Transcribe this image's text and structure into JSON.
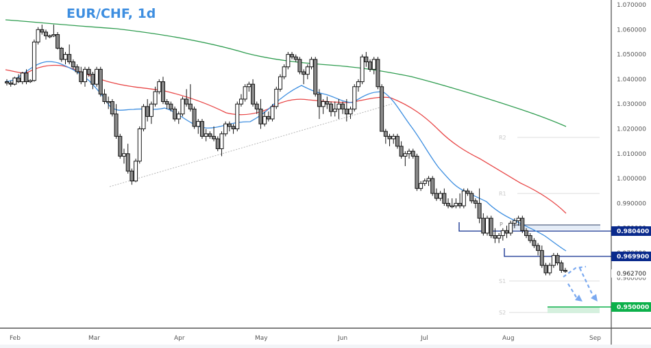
{
  "chart_data": {
    "type": "candlestick",
    "title": "EUR/CHF, 1d",
    "xlabel": "",
    "ylabel": "",
    "ylim": [
      0.945,
      1.07
    ],
    "grid": false,
    "x_ticks": [
      "Feb",
      "Mar",
      "Apr",
      "May",
      "Jun",
      "Jul",
      "Aug",
      "Sep"
    ],
    "y_ticks": [
      1.07,
      1.06,
      1.05,
      1.04,
      1.03,
      1.02,
      1.01,
      1.0,
      0.99,
      0.98,
      0.97,
      0.96
    ],
    "y_tick_labels": [
      "1.070000",
      "1.060000",
      "1.050000",
      "1.040000",
      "1.030000",
      "1.020000",
      "1.010000",
      "1.000000",
      "0.990000",
      "0.980000",
      "0.970000",
      "0.960000"
    ],
    "current_price": 0.9627,
    "current_price_label": "0.962700",
    "horizontal_levels": [
      {
        "name": "resistance-1",
        "value": 0.9804,
        "label": "0.980400",
        "color": "#0a2a8c"
      },
      {
        "name": "resistance-2",
        "value": 0.9699,
        "label": "0.969900",
        "color": "#0a2a8c"
      },
      {
        "name": "target",
        "value": 0.95,
        "label": "0.950000",
        "color": "#0cb04a"
      }
    ],
    "pivot_levels": [
      {
        "label": "R2",
        "value": 1.017
      },
      {
        "label": "R1",
        "value": 0.995
      },
      {
        "label": "P",
        "value": 0.9818
      },
      {
        "label": "S1",
        "value": 0.96
      },
      {
        "label": "S2",
        "value": 0.948
      }
    ],
    "moving_averages": [
      {
        "name": "MA fast (blue)",
        "color": "#3b8de0"
      },
      {
        "name": "MA medium (red)",
        "color": "#e84545"
      },
      {
        "name": "MA slow (green)",
        "color": "#2e9c4f"
      }
    ],
    "annotations": [
      {
        "type": "dotted-trendline",
        "from": [
          "Mar",
          0.9975
        ],
        "to": [
          "Jun",
          1.03
        ]
      },
      {
        "type": "projected-path-arrows",
        "description": "dashed blue arrows projecting decline toward 0.95"
      }
    ],
    "candles_approx": [
      [
        1.039,
        1.04,
        1.0375,
        1.0385
      ],
      [
        1.0385,
        1.0395,
        1.037,
        1.038
      ],
      [
        1.038,
        1.041,
        1.0375,
        1.0405
      ],
      [
        1.0405,
        1.042,
        1.0385,
        1.039
      ],
      [
        1.039,
        1.043,
        1.038,
        1.0425
      ],
      [
        1.0425,
        1.044,
        1.038,
        1.039
      ],
      [
        1.039,
        1.04,
        1.0385,
        1.0395
      ],
      [
        1.0395,
        1.056,
        1.039,
        1.055
      ],
      [
        1.055,
        1.061,
        1.054,
        1.06
      ],
      [
        1.06,
        1.062,
        1.058,
        1.059
      ],
      [
        1.059,
        1.06,
        1.056,
        1.0575
      ],
      [
        1.0575,
        1.058,
        1.0565,
        1.0575
      ],
      [
        1.0575,
        1.062,
        1.057,
        1.058
      ],
      [
        1.058,
        1.059,
        1.052,
        1.0525
      ],
      [
        1.0525,
        1.053,
        1.047,
        1.048
      ],
      [
        1.048,
        1.051,
        1.046,
        1.05
      ],
      [
        1.05,
        1.054,
        1.046,
        1.047
      ],
      [
        1.047,
        1.048,
        1.044,
        1.045
      ],
      [
        1.045,
        1.046,
        1.042,
        1.043
      ],
      [
        1.043,
        1.045,
        1.038,
        1.039
      ],
      [
        1.039,
        1.045,
        1.037,
        1.044
      ],
      [
        1.044,
        1.045,
        1.041,
        1.042
      ],
      [
        1.042,
        1.043,
        1.036,
        1.038
      ],
      [
        1.038,
        1.045,
        1.037,
        1.044
      ],
      [
        1.044,
        1.045,
        1.033,
        1.034
      ],
      [
        1.034,
        1.036,
        1.03,
        1.031
      ],
      [
        1.031,
        1.033,
        1.028,
        1.031
      ],
      [
        1.031,
        1.032,
        1.025,
        1.026
      ],
      [
        1.026,
        1.03,
        1.016,
        1.017
      ],
      [
        1.017,
        1.018,
        1.008,
        1.009
      ],
      [
        1.009,
        1.012,
        1.006,
        1.01
      ],
      [
        1.01,
        1.014,
        1.002,
        1.003
      ],
      [
        1.003,
        1.004,
        0.9975,
        0.999
      ],
      [
        0.999,
        1.008,
        0.9985,
        1.007
      ],
      [
        1.007,
        1.021,
        1.006,
        1.02
      ],
      [
        1.02,
        1.03,
        1.019,
        1.029
      ],
      [
        1.029,
        1.032,
        1.023,
        1.025
      ],
      [
        1.025,
        1.031,
        1.022,
        1.03
      ],
      [
        1.03,
        1.037,
        1.029,
        1.035
      ],
      [
        1.035,
        1.04,
        1.034,
        1.039
      ],
      [
        1.039,
        1.041,
        1.03,
        1.031
      ],
      [
        1.031,
        1.032,
        1.028,
        1.03
      ],
      [
        1.03,
        1.031,
        1.027,
        1.028
      ],
      [
        1.028,
        1.029,
        1.023,
        1.024
      ],
      [
        1.024,
        1.027,
        1.022,
        1.026
      ],
      [
        1.026,
        1.033,
        1.025,
        1.032
      ],
      [
        1.032,
        1.036,
        1.029,
        1.03
      ],
      [
        1.03,
        1.038,
        1.027,
        1.028
      ],
      [
        1.028,
        1.029,
        1.02,
        1.021
      ],
      [
        1.021,
        1.024,
        1.018,
        1.023
      ],
      [
        1.023,
        1.024,
        1.016,
        1.017
      ],
      [
        1.017,
        1.02,
        1.015,
        1.018
      ],
      [
        1.018,
        1.019,
        1.016,
        1.017
      ],
      [
        1.017,
        1.021,
        1.015,
        1.016
      ],
      [
        1.016,
        1.017,
        1.011,
        1.012
      ],
      [
        1.012,
        1.019,
        1.009,
        1.018
      ],
      [
        1.018,
        1.023,
        1.017,
        1.022
      ],
      [
        1.022,
        1.023,
        1.019,
        1.021
      ],
      [
        1.021,
        1.022,
        1.018,
        1.02
      ],
      [
        1.02,
        1.031,
        1.019,
        1.03
      ],
      [
        1.03,
        1.034,
        1.029,
        1.032
      ],
      [
        1.032,
        1.038,
        1.031,
        1.037
      ],
      [
        1.037,
        1.039,
        1.035,
        1.038
      ],
      [
        1.038,
        1.04,
        1.029,
        1.03
      ],
      [
        1.03,
        1.031,
        1.026,
        1.028
      ],
      [
        1.028,
        1.032,
        1.02,
        1.022
      ],
      [
        1.022,
        1.027,
        1.021,
        1.025
      ],
      [
        1.025,
        1.027,
        1.023,
        1.024
      ],
      [
        1.024,
        1.03,
        1.023,
        1.029
      ],
      [
        1.029,
        1.037,
        1.028,
        1.036
      ],
      [
        1.036,
        1.042,
        1.035,
        1.041
      ],
      [
        1.041,
        1.046,
        1.04,
        1.045
      ],
      [
        1.045,
        1.051,
        1.044,
        1.05
      ],
      [
        1.05,
        1.051,
        1.048,
        1.049
      ],
      [
        1.049,
        1.05,
        1.047,
        1.048
      ],
      [
        1.048,
        1.049,
        1.042,
        1.043
      ],
      [
        1.043,
        1.044,
        1.038,
        1.042
      ],
      [
        1.042,
        1.046,
        1.04,
        1.045
      ],
      [
        1.045,
        1.049,
        1.044,
        1.048
      ],
      [
        1.048,
        1.049,
        1.033,
        1.034
      ],
      [
        1.034,
        1.036,
        1.024,
        1.029
      ],
      [
        1.029,
        1.032,
        1.026,
        1.031
      ],
      [
        1.031,
        1.033,
        1.028,
        1.03
      ],
      [
        1.03,
        1.031,
        1.025,
        1.027
      ],
      [
        1.027,
        1.031,
        1.025,
        1.028
      ],
      [
        1.028,
        1.032,
        1.024,
        1.03
      ],
      [
        1.03,
        1.031,
        1.026,
        1.028
      ],
      [
        1.028,
        1.032,
        1.023,
        1.026
      ],
      [
        1.026,
        1.029,
        1.024,
        1.028
      ],
      [
        1.028,
        1.038,
        1.027,
        1.037
      ],
      [
        1.037,
        1.04,
        1.035,
        1.039
      ],
      [
        1.039,
        1.05,
        1.038,
        1.049
      ],
      [
        1.049,
        1.051,
        1.045,
        1.047
      ],
      [
        1.047,
        1.048,
        1.043,
        1.044
      ],
      [
        1.044,
        1.049,
        1.042,
        1.048
      ],
      [
        1.048,
        1.049,
        1.036,
        1.037
      ],
      [
        1.037,
        1.038,
        1.021,
        1.019
      ],
      [
        1.019,
        1.02,
        1.014,
        1.017
      ],
      [
        1.017,
        1.018,
        1.013,
        1.016
      ],
      [
        1.016,
        1.018,
        1.014,
        1.017
      ],
      [
        1.017,
        1.018,
        1.012,
        1.013
      ],
      [
        1.013,
        1.015,
        1.008,
        1.009
      ],
      [
        1.009,
        1.011,
        1.005,
        1.01
      ],
      [
        1.01,
        1.012,
        1.008,
        1.011
      ],
      [
        1.011,
        1.012,
        1.008,
        1.009
      ],
      [
        1.009,
        1.01,
        0.995,
        0.996
      ],
      [
        0.996,
        0.999,
        0.995,
        0.998
      ],
      [
        0.998,
        1.0,
        0.997,
        0.999
      ],
      [
        0.999,
        1.001,
        0.997,
        1.0
      ],
      [
        1.0,
        1.001,
        0.993,
        0.994
      ],
      [
        0.994,
        0.996,
        0.991,
        0.992
      ],
      [
        0.992,
        0.995,
        0.991,
        0.994
      ],
      [
        0.994,
        0.996,
        0.989,
        0.99
      ],
      [
        0.99,
        0.992,
        0.988,
        0.989
      ],
      [
        0.989,
        0.992,
        0.988,
        0.989
      ],
      [
        0.989,
        0.992,
        0.988,
        0.99
      ],
      [
        0.99,
        0.994,
        0.988,
        0.989
      ],
      [
        0.989,
        0.996,
        0.988,
        0.995
      ],
      [
        0.995,
        0.996,
        0.993,
        0.994
      ],
      [
        0.994,
        0.995,
        0.99,
        0.991
      ],
      [
        0.991,
        0.992,
        0.988,
        0.99
      ],
      [
        0.99,
        0.996,
        0.982,
        0.984
      ],
      [
        0.984,
        0.986,
        0.977,
        0.978
      ],
      [
        0.978,
        0.985,
        0.977,
        0.984
      ],
      [
        0.984,
        0.985,
        0.976,
        0.977
      ],
      [
        0.977,
        0.98,
        0.974,
        0.976
      ],
      [
        0.976,
        0.978,
        0.974,
        0.977
      ],
      [
        0.977,
        0.98,
        0.975,
        0.979
      ],
      [
        0.979,
        0.981,
        0.976,
        0.978
      ],
      [
        0.978,
        0.983,
        0.977,
        0.982
      ],
      [
        0.982,
        0.984,
        0.98,
        0.983
      ],
      [
        0.983,
        0.985,
        0.981,
        0.984
      ],
      [
        0.984,
        0.985,
        0.978,
        0.979
      ],
      [
        0.979,
        0.98,
        0.976,
        0.977
      ],
      [
        0.977,
        0.978,
        0.974,
        0.975
      ],
      [
        0.975,
        0.976,
        0.972,
        0.973
      ],
      [
        0.973,
        0.974,
        0.969,
        0.971
      ],
      [
        0.971,
        0.973,
        0.964,
        0.965
      ],
      [
        0.965,
        0.966,
        0.961,
        0.962
      ],
      [
        0.962,
        0.966,
        0.961,
        0.965
      ],
      [
        0.965,
        0.97,
        0.964,
        0.969
      ],
      [
        0.969,
        0.97,
        0.965,
        0.966
      ],
      [
        0.966,
        0.967,
        0.962,
        0.963
      ],
      [
        0.963,
        0.964,
        0.962,
        0.9627
      ]
    ]
  },
  "header": {
    "title": "EUR/CHF, 1d"
  },
  "price_axis": {
    "labels": [
      "1.070000",
      "1.060000",
      "1.050000",
      "1.040000",
      "1.030000",
      "1.020000",
      "1.010000",
      "1.000000",
      "0.990000",
      "0.980000",
      "0.970000",
      "0.960000"
    ],
    "tags": {
      "resistance_1": "0.980400",
      "resistance_2": "0.969900",
      "current": "0.962700",
      "target": "0.950000"
    }
  },
  "time_axis": {
    "labels": [
      "Feb",
      "Mar",
      "Apr",
      "May",
      "Jun",
      "Jul",
      "Aug",
      "Sep"
    ]
  },
  "pivots": {
    "r2": "R2",
    "r1": "R1",
    "p": "P",
    "s1": "S1",
    "s2": "S2"
  },
  "colors": {
    "title": "#3d8ee0",
    "candle_up": "#ffffff",
    "candle_down": "#8a8a8a",
    "ma_blue": "#3b8de0",
    "ma_red": "#e84545",
    "ma_green": "#2e9c4f",
    "level_navy": "#0a2a8c",
    "target_green": "#0cb04a",
    "arrow": "#7aa9f0"
  }
}
